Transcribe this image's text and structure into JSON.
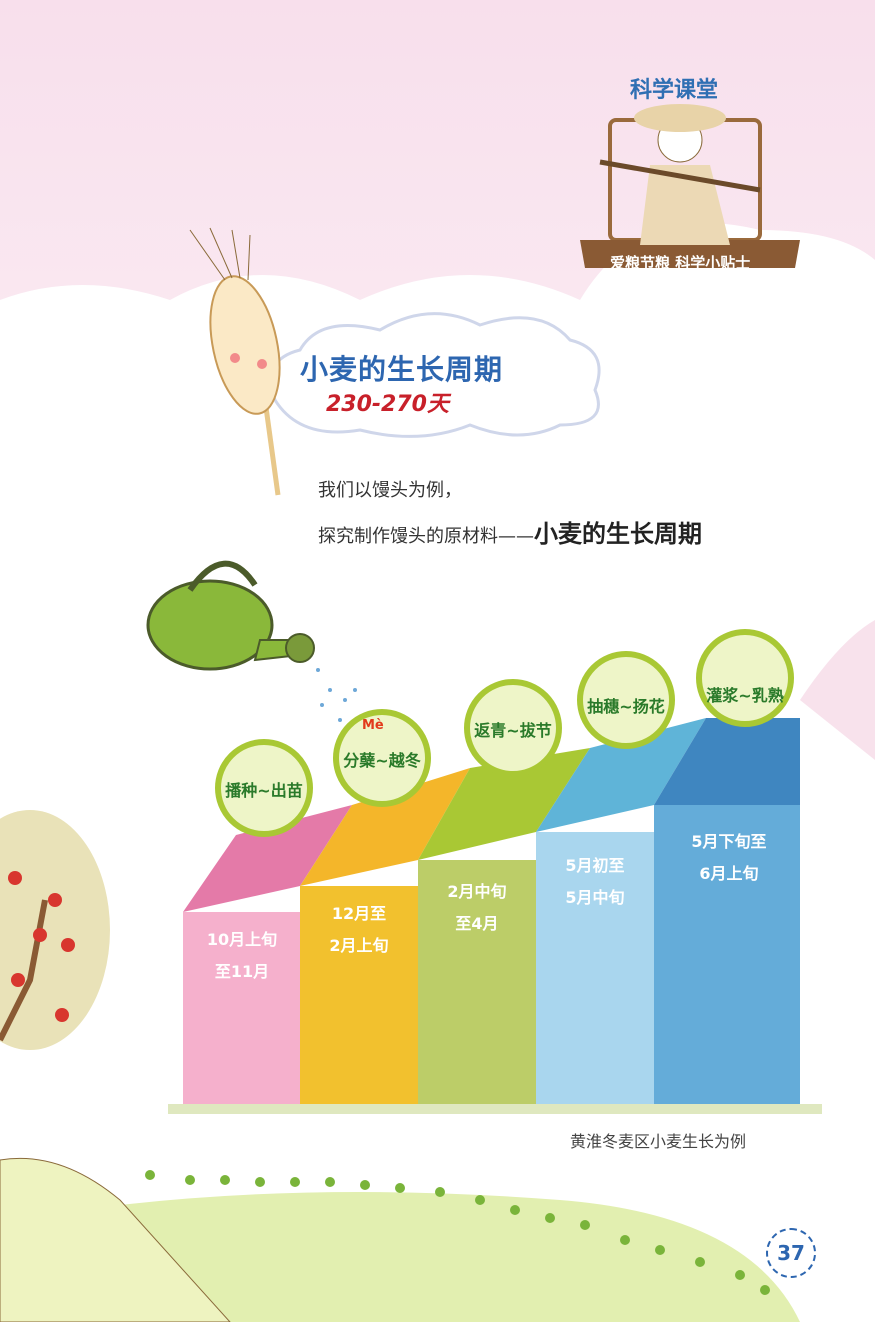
{
  "badge": {
    "title": "科学课堂",
    "ribbon": "爱粮节粮 科学小贴士"
  },
  "heading": {
    "title": "小麦的生长周期",
    "days": "230-270天"
  },
  "intro": {
    "line1": "我们以馒头为例，",
    "line2": "探究制作馒头的原材料——",
    "line2_emph": "小麦的生长周期"
  },
  "stages": [
    {
      "name": "播种~出苗",
      "period_line1": "10月上旬",
      "period_line2": "至11月",
      "color": "#f5a8c8"
    },
    {
      "name": "分蘖~越冬",
      "pinyin": "Mè",
      "period_line1": "12月至",
      "period_line2": "2月上旬",
      "color": "#f2c12e"
    },
    {
      "name": "返青~拔节",
      "period_line1": "2月中旬",
      "period_line2": "至4月",
      "color": "#b9cc5a"
    },
    {
      "name": "抽穗~扬花",
      "period_line1": "5月初至",
      "period_line2": "5月中旬",
      "color": "#a6d4ec"
    },
    {
      "name": "灌浆~乳熟",
      "period_line1": "5月下旬至",
      "period_line2": "6月上旬",
      "color": "#5aaad8"
    }
  ],
  "caption": "黄淮冬麦区小麦生长为例",
  "page_number": "37"
}
